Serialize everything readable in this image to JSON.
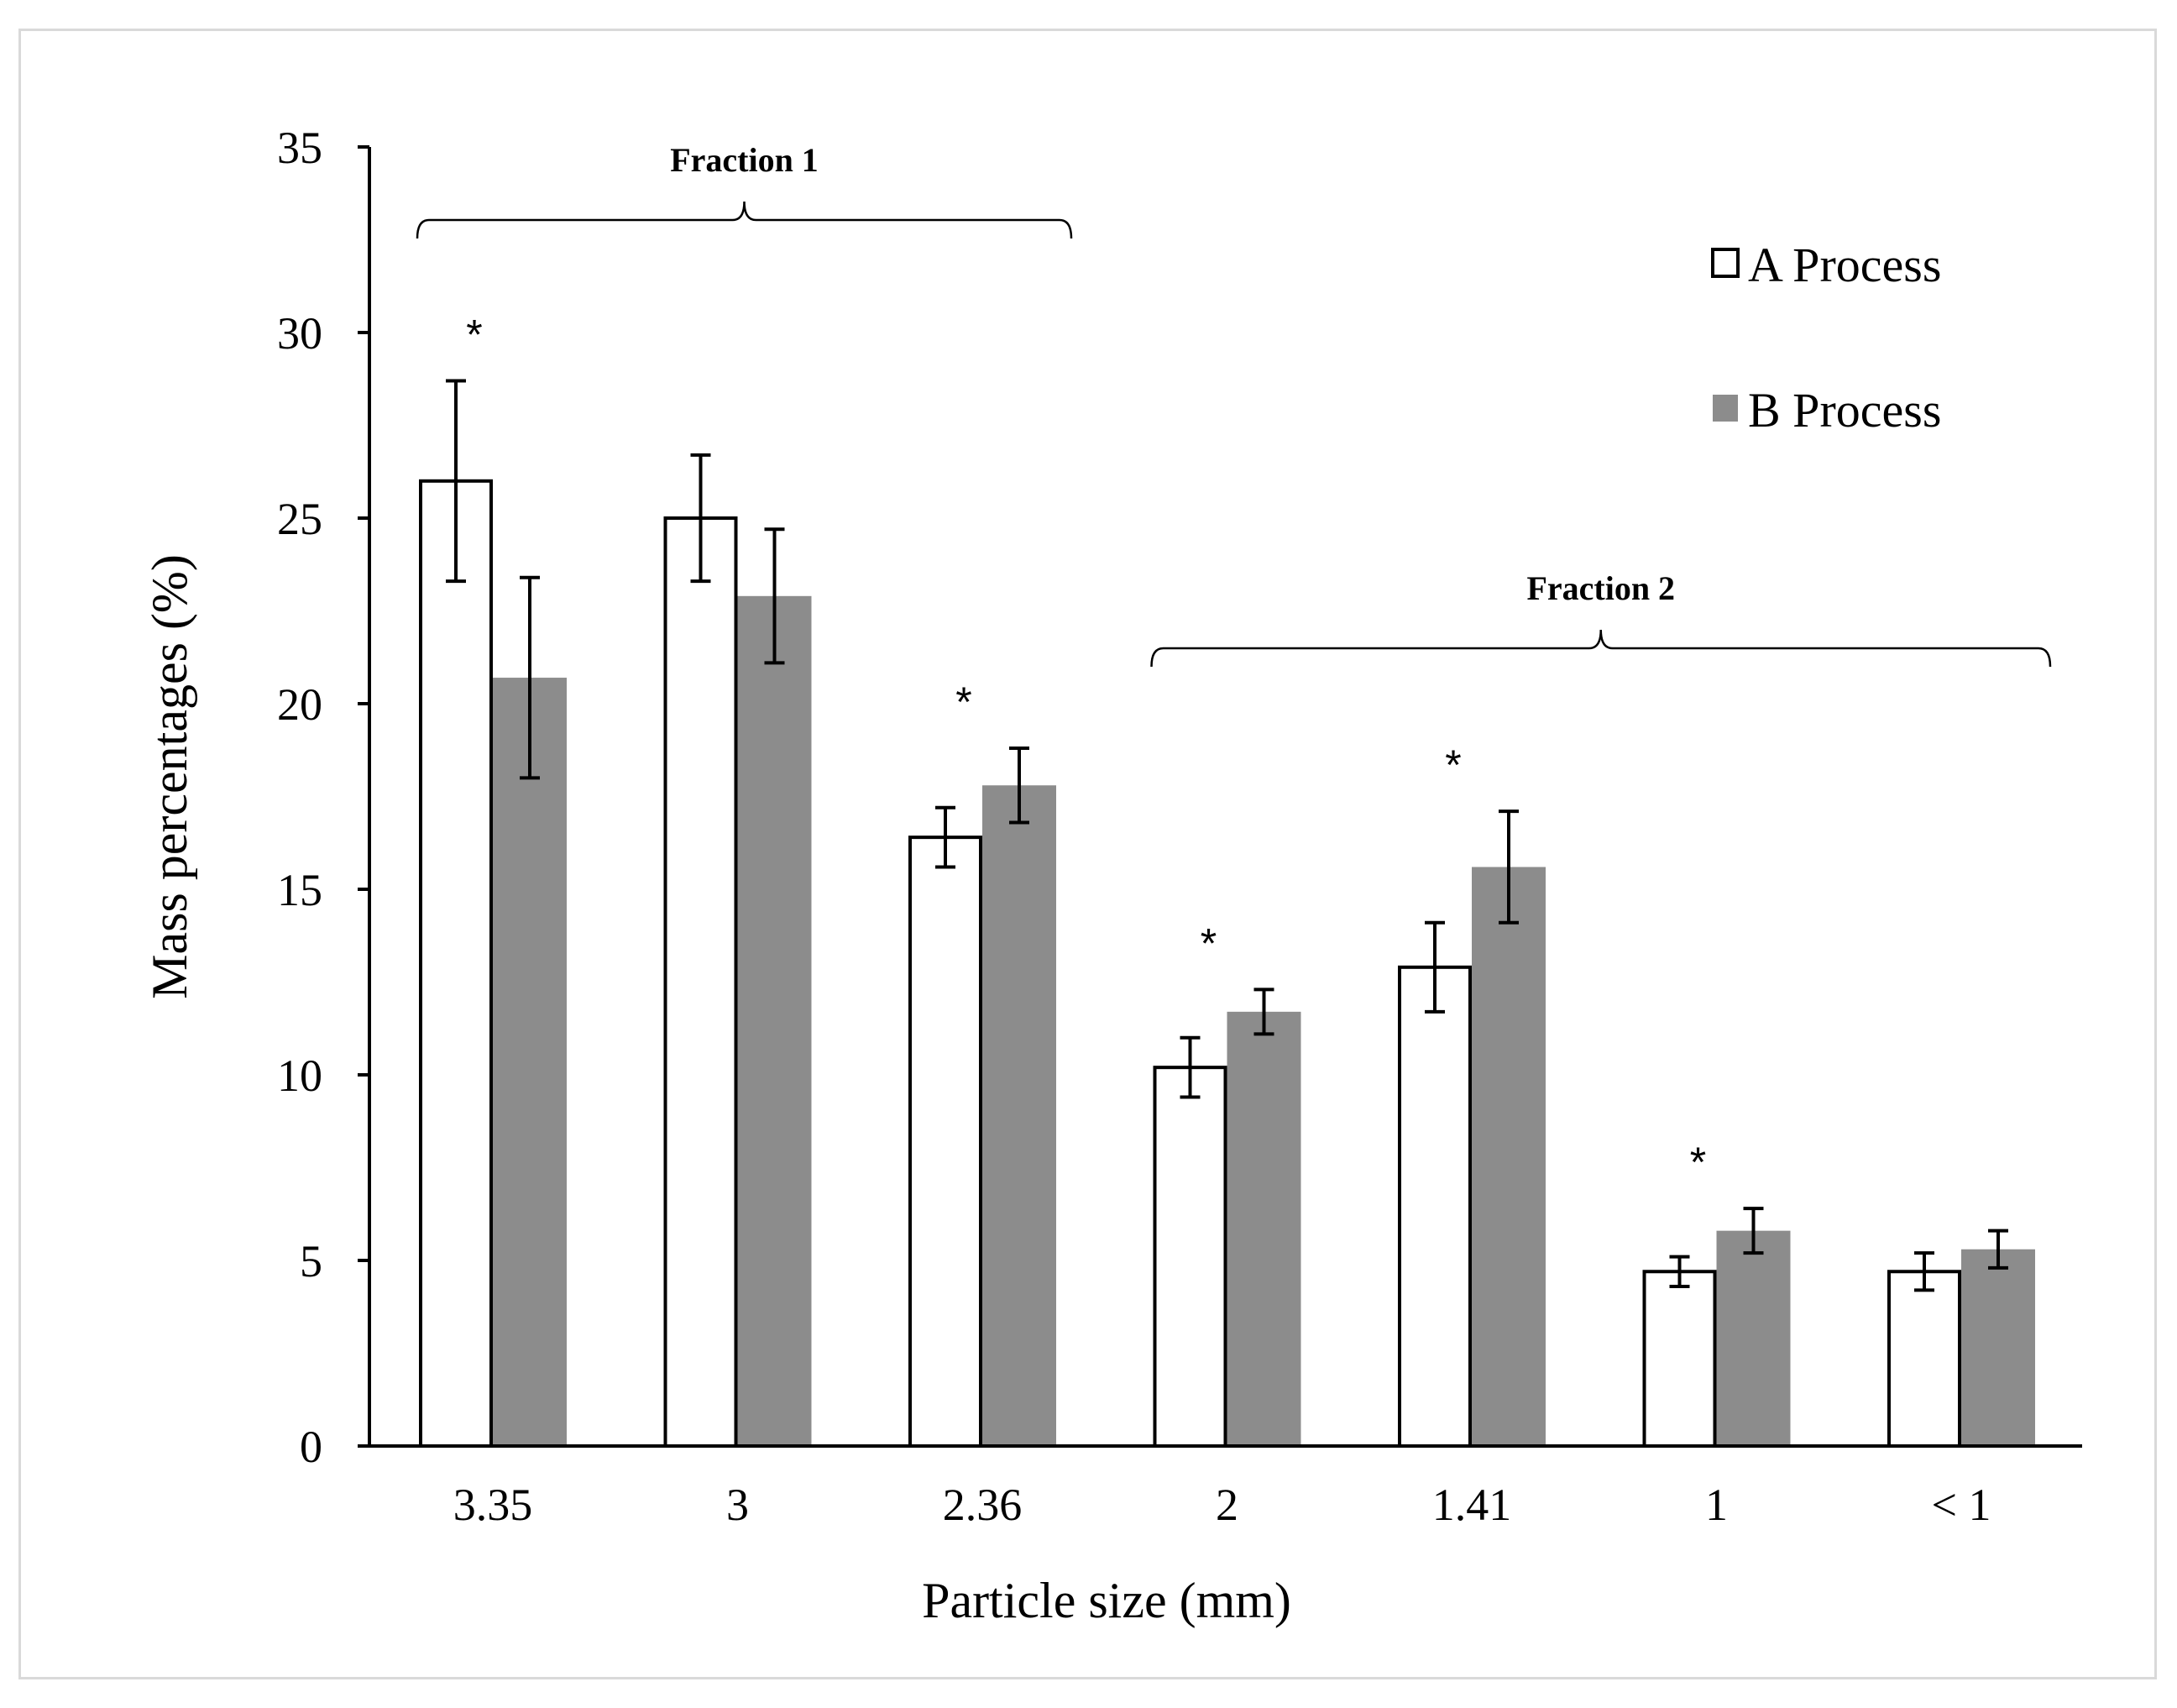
{
  "chart_data": {
    "type": "bar",
    "xlabel": "Particle size (mm)",
    "ylabel": "Mass percentages (%)",
    "ylim": [
      0,
      35
    ],
    "yticks": [
      0,
      5,
      10,
      15,
      20,
      25,
      30,
      35
    ],
    "grid": false,
    "legend_position": "top-right",
    "categories": [
      "3.35",
      "3",
      "2.36",
      "2",
      "1.41",
      "1",
      "< 1"
    ],
    "series": [
      {
        "name": "A Process",
        "color": "#ffffff",
        "stroke": "#000000",
        "values": [
          26.0,
          25.0,
          16.4,
          10.2,
          12.9,
          4.7,
          4.7
        ],
        "errors": [
          2.7,
          1.7,
          0.8,
          0.8,
          1.2,
          0.4,
          0.5
        ]
      },
      {
        "name": "B Process",
        "color": "#8c8c8c",
        "stroke": "#8c8c8c",
        "values": [
          20.7,
          22.9,
          17.8,
          11.7,
          15.6,
          5.8,
          5.3
        ],
        "errors": [
          2.7,
          1.8,
          1.0,
          0.6,
          1.5,
          0.6,
          0.5
        ]
      }
    ],
    "significance": {
      "mark": "*",
      "categories": [
        "3.35",
        "2.36",
        "2",
        "1.41",
        "1"
      ]
    },
    "annotations": [
      {
        "label": "Fraction 1",
        "from_category": "3.35",
        "to_category": "2.36"
      },
      {
        "label": "Fraction  2",
        "from_category": "2",
        "to_category": "< 1"
      }
    ]
  }
}
